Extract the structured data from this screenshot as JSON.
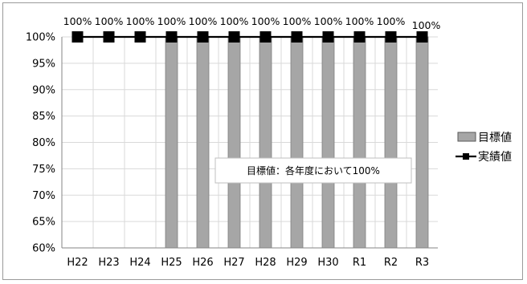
{
  "chart_data": {
    "type": "bar",
    "categories": [
      "H22",
      "H23",
      "H24",
      "H25",
      "H26",
      "H27",
      "H28",
      "H29",
      "H30",
      "R1",
      "R2",
      "R3"
    ],
    "series": [
      {
        "name": "目標値",
        "type": "bar",
        "color": "#a6a6a6",
        "values": [
          null,
          null,
          null,
          100,
          100,
          100,
          100,
          100,
          100,
          100,
          100,
          100
        ]
      },
      {
        "name": "実績値",
        "type": "line",
        "marker": "square",
        "color": "#000000",
        "values": [
          100,
          100,
          100,
          100,
          100,
          100,
          100,
          100,
          100,
          100,
          100,
          100
        ]
      }
    ],
    "data_labels": [
      "100%",
      "100%",
      "100%",
      "100%",
      "100%",
      "100%",
      "100%",
      "100%",
      "100%",
      "100%",
      "100%",
      "100%"
    ],
    "ylim": [
      60,
      100
    ],
    "yticks": [
      "60%",
      "65%",
      "70%",
      "75%",
      "80%",
      "85%",
      "90%",
      "95%",
      "100%"
    ],
    "grid": true,
    "legend": "right",
    "annotation": "目標値：各年度において100%"
  }
}
